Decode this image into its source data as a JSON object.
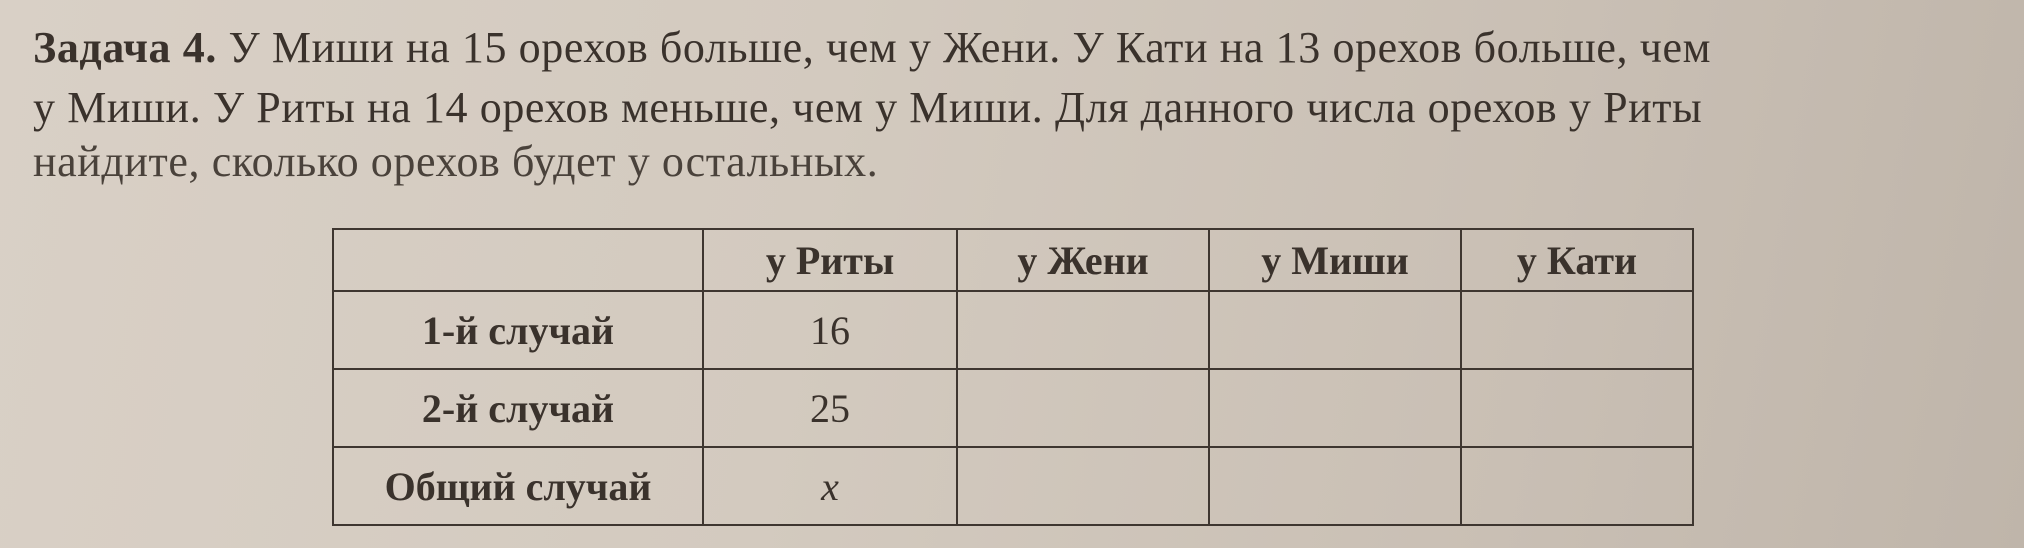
{
  "problem": {
    "label": "Задача 4.",
    "lines": [
      "У Миши на 15 орехов больше, чем у Жени. У Кати на 13 орехов больше, чем",
      "у Миши. У Риты на 14 орехов меньше, чем у Миши. Для данного числа орехов у Риты",
      "найдите, сколько орехов будет у остальных."
    ]
  },
  "table": {
    "headers": [
      "",
      "у Риты",
      "у Жени",
      "у Миши",
      "у Кати"
    ],
    "rows": [
      {
        "label": "1-й случай",
        "rita": "16",
        "zhenya": "",
        "misha": "",
        "katya": ""
      },
      {
        "label": "2-й случай",
        "rita": "25",
        "zhenya": "",
        "misha": "",
        "katya": ""
      },
      {
        "label": "Общий случай",
        "rita": "x",
        "zhenya": "",
        "misha": "",
        "katya": ""
      }
    ]
  }
}
